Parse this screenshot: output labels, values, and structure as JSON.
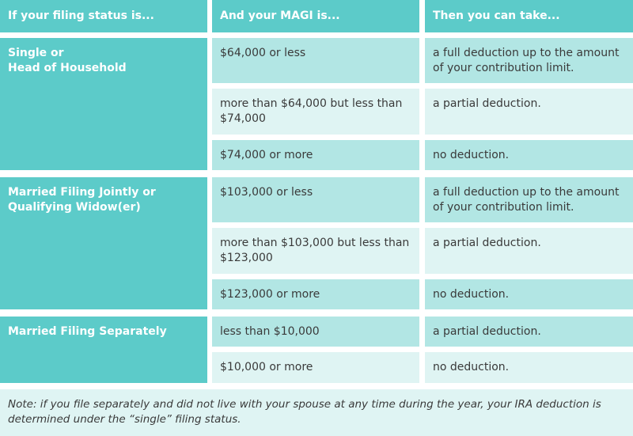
{
  "header": [
    "If your filing status is...",
    "And your MAGI is...",
    "Then you can take..."
  ],
  "groups": [
    {
      "status": "Single or\nHead of Household",
      "rows": [
        [
          "$64,000 or less",
          "a full deduction up to the amount of your contribution limit."
        ],
        [
          "more than $64,000 but less than $74,000",
          "a partial deduction."
        ],
        [
          "$74,000 or more",
          "no deduction."
        ]
      ]
    },
    {
      "status": "Married Filing Jointly or\nQualifying Widow(er)",
      "rows": [
        [
          "$103,000 or less",
          "a full deduction up to the amount of your contribution limit."
        ],
        [
          "more than $103,000 but less than $123,000",
          "a partial deduction."
        ],
        [
          "$123,000 or more",
          "no deduction."
        ]
      ]
    },
    {
      "status": "Married Filing Separately",
      "rows": [
        [
          "less than $10,000",
          "a partial deduction."
        ],
        [
          "$10,000 or more",
          "no deduction."
        ]
      ]
    }
  ],
  "note": "Note: if you file separately and did not live with your spouse at any time during the year, your IRA deduction is determined under the “single” filing status."
}
